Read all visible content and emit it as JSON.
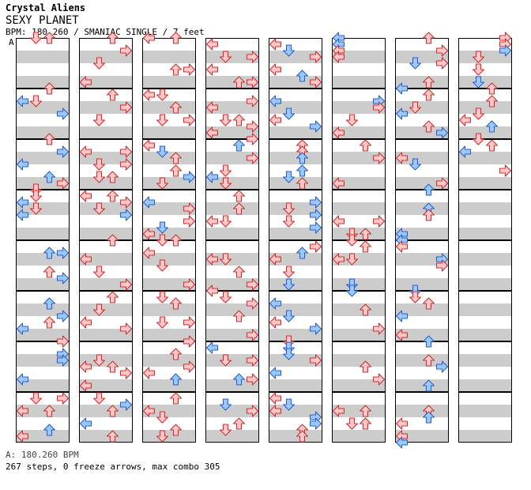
{
  "song": {
    "artist": "Crystal Aliens",
    "title": "SEXY PLANET",
    "meta_line": "BPM: 180.260 / SMANIAC SINGLE / 7 feet",
    "section_label": "A"
  },
  "footer": {
    "bpm_line": "A: 180.260 BPM",
    "stats_line": "267 steps, 0 freeze arrows, max combo 305"
  },
  "colors": {
    "red_arrow_fill": "#ffc8c8",
    "red_arrow_stroke": "#d03030",
    "blue_arrow_fill": "#9cc8ff",
    "blue_arrow_stroke": "#2a62c8",
    "stripe": "#cccccc",
    "border": "#000000"
  },
  "chart": {
    "columns": 8,
    "measures_per_column": 8,
    "lanes": [
      "left",
      "down",
      "up",
      "right"
    ],
    "measure_count_total": 64
  },
  "steps": [
    [
      0,
      0,
      1,
      0.0,
      "r"
    ],
    [
      0,
      0,
      2,
      0.0,
      "r"
    ],
    [
      0,
      1,
      0,
      0.25,
      "b"
    ],
    [
      0,
      1,
      2,
      0.0,
      "r"
    ],
    [
      0,
      1,
      1,
      0.25,
      "r"
    ],
    [
      0,
      1,
      3,
      0.5,
      "b"
    ],
    [
      0,
      2,
      2,
      0.0,
      "r"
    ],
    [
      0,
      2,
      3,
      0.25,
      "b"
    ],
    [
      0,
      2,
      0,
      0.5,
      "b"
    ],
    [
      0,
      2,
      2,
      0.75,
      "b"
    ],
    [
      0,
      2,
      3,
      0.875,
      "r"
    ],
    [
      0,
      3,
      1,
      0.0,
      "r"
    ],
    [
      0,
      3,
      1,
      0.125,
      "r"
    ],
    [
      0,
      3,
      0,
      0.25,
      "b"
    ],
    [
      0,
      3,
      1,
      0.375,
      "r"
    ],
    [
      0,
      3,
      0,
      0.5,
      "b"
    ],
    [
      0,
      4,
      2,
      0.25,
      "b"
    ],
    [
      0,
      4,
      3,
      0.25,
      "b"
    ],
    [
      0,
      4,
      2,
      0.625,
      "r"
    ],
    [
      0,
      4,
      3,
      0.75,
      "b"
    ],
    [
      0,
      5,
      2,
      0.25,
      "b"
    ],
    [
      0,
      5,
      3,
      0.5,
      "b"
    ],
    [
      0,
      5,
      2,
      0.625,
      "r"
    ],
    [
      0,
      5,
      0,
      0.75,
      "b"
    ],
    [
      0,
      6,
      3,
      0.0,
      "r"
    ],
    [
      0,
      6,
      3,
      0.25,
      "b"
    ],
    [
      0,
      6,
      3,
      0.375,
      "b"
    ],
    [
      0,
      6,
      0,
      0.75,
      "b"
    ],
    [
      0,
      7,
      1,
      0.125,
      "r"
    ],
    [
      0,
      7,
      3,
      0.125,
      "r"
    ],
    [
      0,
      7,
      0,
      0.375,
      "r"
    ],
    [
      0,
      7,
      2,
      0.375,
      "r"
    ],
    [
      0,
      7,
      2,
      0.75,
      "b"
    ],
    [
      0,
      7,
      0,
      0.875,
      "r"
    ],
    [
      1,
      0,
      2,
      0.0,
      "r"
    ],
    [
      1,
      0,
      3,
      0.25,
      "r"
    ],
    [
      1,
      0,
      1,
      0.5,
      "r"
    ],
    [
      1,
      0,
      0,
      0.875,
      "r"
    ],
    [
      1,
      1,
      2,
      0.125,
      "r"
    ],
    [
      1,
      1,
      3,
      0.375,
      "r"
    ],
    [
      1,
      1,
      1,
      0.625,
      "r"
    ],
    [
      1,
      2,
      0,
      0.25,
      "r"
    ],
    [
      1,
      2,
      3,
      0.25,
      "r"
    ],
    [
      1,
      2,
      1,
      0.5,
      "r"
    ],
    [
      1,
      2,
      3,
      0.5,
      "r"
    ],
    [
      1,
      2,
      1,
      0.75,
      "r"
    ],
    [
      1,
      2,
      2,
      0.75,
      "r"
    ],
    [
      1,
      3,
      0,
      0.125,
      "r"
    ],
    [
      1,
      3,
      2,
      0.125,
      "r"
    ],
    [
      1,
      3,
      3,
      0.25,
      "r"
    ],
    [
      1,
      3,
      1,
      0.375,
      "r"
    ],
    [
      1,
      3,
      3,
      0.5,
      "b"
    ],
    [
      1,
      4,
      2,
      0.0,
      "r"
    ],
    [
      1,
      4,
      0,
      0.375,
      "r"
    ],
    [
      1,
      4,
      1,
      0.625,
      "r"
    ],
    [
      1,
      4,
      3,
      0.875,
      "r"
    ],
    [
      1,
      5,
      2,
      0.125,
      "r"
    ],
    [
      1,
      5,
      1,
      0.375,
      "r"
    ],
    [
      1,
      5,
      0,
      0.625,
      "r"
    ],
    [
      1,
      5,
      3,
      0.75,
      "r"
    ],
    [
      1,
      6,
      1,
      0.375,
      "r"
    ],
    [
      1,
      6,
      0,
      0.5,
      "r"
    ],
    [
      1,
      6,
      2,
      0.5,
      "r"
    ],
    [
      1,
      6,
      3,
      0.625,
      "r"
    ],
    [
      1,
      6,
      0,
      0.875,
      "r"
    ],
    [
      1,
      7,
      1,
      0.125,
      "r"
    ],
    [
      1,
      7,
      3,
      0.25,
      "b"
    ],
    [
      1,
      7,
      2,
      0.375,
      "r"
    ],
    [
      1,
      7,
      0,
      0.625,
      "b"
    ],
    [
      1,
      7,
      2,
      0.875,
      "r"
    ],
    [
      2,
      0,
      0,
      0.0,
      "r"
    ],
    [
      2,
      0,
      2,
      0.0,
      "r"
    ],
    [
      2,
      0,
      2,
      0.625,
      "r"
    ],
    [
      2,
      0,
      3,
      0.625,
      "r"
    ],
    [
      2,
      1,
      0,
      0.125,
      "r"
    ],
    [
      2,
      1,
      1,
      0.125,
      "r"
    ],
    [
      2,
      1,
      2,
      0.375,
      "r"
    ],
    [
      2,
      1,
      1,
      0.625,
      "r"
    ],
    [
      2,
      1,
      3,
      0.625,
      "r"
    ],
    [
      2,
      2,
      0,
      0.125,
      "r"
    ],
    [
      2,
      2,
      1,
      0.25,
      "b"
    ],
    [
      2,
      2,
      2,
      0.375,
      "r"
    ],
    [
      2,
      2,
      2,
      0.625,
      "r"
    ],
    [
      2,
      2,
      3,
      0.75,
      "b"
    ],
    [
      2,
      2,
      1,
      0.875,
      "r"
    ],
    [
      2,
      3,
      0,
      0.25,
      "b"
    ],
    [
      2,
      3,
      3,
      0.375,
      "r"
    ],
    [
      2,
      3,
      3,
      0.625,
      "r"
    ],
    [
      2,
      3,
      1,
      0.75,
      "b"
    ],
    [
      2,
      3,
      0,
      0.875,
      "r"
    ],
    [
      2,
      4,
      1,
      0.0,
      "r"
    ],
    [
      2,
      4,
      2,
      0.0,
      "r"
    ],
    [
      2,
      4,
      0,
      0.25,
      "r"
    ],
    [
      2,
      4,
      1,
      0.5,
      "r"
    ],
    [
      2,
      4,
      3,
      0.875,
      "r"
    ],
    [
      2,
      5,
      1,
      0.125,
      "r"
    ],
    [
      2,
      5,
      2,
      0.25,
      "r"
    ],
    [
      2,
      5,
      1,
      0.625,
      "r"
    ],
    [
      2,
      5,
      3,
      0.625,
      "r"
    ],
    [
      2,
      6,
      3,
      0.0,
      "r"
    ],
    [
      2,
      6,
      2,
      0.25,
      "r"
    ],
    [
      2,
      6,
      3,
      0.5,
      "r"
    ],
    [
      2,
      6,
      0,
      0.625,
      "r"
    ],
    [
      2,
      6,
      2,
      0.75,
      "b"
    ],
    [
      2,
      7,
      2,
      0.125,
      "r"
    ],
    [
      2,
      7,
      0,
      0.375,
      "r"
    ],
    [
      2,
      7,
      1,
      0.5,
      "r"
    ],
    [
      2,
      7,
      2,
      0.75,
      "r"
    ],
    [
      2,
      7,
      1,
      0.875,
      "r"
    ],
    [
      3,
      0,
      0,
      0.125,
      "r"
    ],
    [
      3,
      0,
      1,
      0.375,
      "r"
    ],
    [
      3,
      0,
      3,
      0.375,
      "r"
    ],
    [
      3,
      0,
      0,
      0.625,
      "r"
    ],
    [
      3,
      0,
      2,
      0.875,
      "r"
    ],
    [
      3,
      0,
      3,
      0.875,
      "r"
    ],
    [
      3,
      1,
      3,
      0.25,
      "r"
    ],
    [
      3,
      1,
      0,
      0.375,
      "r"
    ],
    [
      3,
      1,
      1,
      0.625,
      "r"
    ],
    [
      3,
      1,
      2,
      0.625,
      "r"
    ],
    [
      3,
      1,
      3,
      0.75,
      "r"
    ],
    [
      3,
      1,
      0,
      0.875,
      "r"
    ],
    [
      3,
      2,
      3,
      0.0,
      "r"
    ],
    [
      3,
      2,
      2,
      0.125,
      "b"
    ],
    [
      3,
      2,
      3,
      0.375,
      "r"
    ],
    [
      3,
      2,
      1,
      0.625,
      "r"
    ],
    [
      3,
      2,
      0,
      0.75,
      "b"
    ],
    [
      3,
      2,
      1,
      0.875,
      "r"
    ],
    [
      3,
      3,
      2,
      0.125,
      "r"
    ],
    [
      3,
      3,
      2,
      0.375,
      "r"
    ],
    [
      3,
      3,
      0,
      0.625,
      "r"
    ],
    [
      3,
      3,
      1,
      0.625,
      "r"
    ],
    [
      3,
      4,
      0,
      0.375,
      "r"
    ],
    [
      3,
      4,
      1,
      0.375,
      "r"
    ],
    [
      3,
      4,
      2,
      0.625,
      "r"
    ],
    [
      3,
      4,
      3,
      0.875,
      "r"
    ],
    [
      3,
      5,
      0,
      0.0,
      "r"
    ],
    [
      3,
      5,
      1,
      0.125,
      "r"
    ],
    [
      3,
      5,
      3,
      0.25,
      "r"
    ],
    [
      3,
      5,
      2,
      0.5,
      "r"
    ],
    [
      3,
      5,
      3,
      0.875,
      "r"
    ],
    [
      3,
      6,
      0,
      0.125,
      "b"
    ],
    [
      3,
      6,
      1,
      0.375,
      "r"
    ],
    [
      3,
      6,
      3,
      0.375,
      "r"
    ],
    [
      3,
      6,
      2,
      0.75,
      "b"
    ],
    [
      3,
      6,
      3,
      0.75,
      "r"
    ],
    [
      3,
      7,
      1,
      0.25,
      "b"
    ],
    [
      3,
      7,
      3,
      0.375,
      "r"
    ],
    [
      3,
      7,
      2,
      0.625,
      "r"
    ],
    [
      3,
      7,
      1,
      0.75,
      "r"
    ],
    [
      4,
      0,
      0,
      0.125,
      "r"
    ],
    [
      4,
      0,
      1,
      0.25,
      "b"
    ],
    [
      4,
      0,
      3,
      0.375,
      "r"
    ],
    [
      4,
      0,
      0,
      0.625,
      "r"
    ],
    [
      4,
      0,
      2,
      0.75,
      "b"
    ],
    [
      4,
      0,
      3,
      0.875,
      "r"
    ],
    [
      4,
      1,
      0,
      0.25,
      "b"
    ],
    [
      4,
      1,
      1,
      0.5,
      "b"
    ],
    [
      4,
      1,
      0,
      0.625,
      "r"
    ],
    [
      4,
      1,
      3,
      0.75,
      "b"
    ],
    [
      4,
      2,
      2,
      0.125,
      "r"
    ],
    [
      4,
      2,
      2,
      0.25,
      "r"
    ],
    [
      4,
      2,
      2,
      0.375,
      "b"
    ],
    [
      4,
      2,
      2,
      0.625,
      "b"
    ],
    [
      4,
      2,
      1,
      0.75,
      "b"
    ],
    [
      4,
      2,
      2,
      0.875,
      "r"
    ],
    [
      4,
      3,
      3,
      0.25,
      "b"
    ],
    [
      4,
      3,
      1,
      0.375,
      "r"
    ],
    [
      4,
      3,
      3,
      0.5,
      "b"
    ],
    [
      4,
      3,
      1,
      0.625,
      "r"
    ],
    [
      4,
      3,
      3,
      0.75,
      "b"
    ],
    [
      4,
      4,
      3,
      0.125,
      "r"
    ],
    [
      4,
      4,
      2,
      0.25,
      "b"
    ],
    [
      4,
      4,
      0,
      0.375,
      "r"
    ],
    [
      4,
      4,
      1,
      0.625,
      "r"
    ],
    [
      4,
      4,
      1,
      0.875,
      "b"
    ],
    [
      4,
      5,
      0,
      0.25,
      "b"
    ],
    [
      4,
      5,
      1,
      0.5,
      "b"
    ],
    [
      4,
      5,
      0,
      0.625,
      "r"
    ],
    [
      4,
      5,
      3,
      0.75,
      "b"
    ],
    [
      4,
      6,
      1,
      0.0,
      "r"
    ],
    [
      4,
      6,
      1,
      0.125,
      "b"
    ],
    [
      4,
      6,
      1,
      0.25,
      "b"
    ],
    [
      4,
      6,
      3,
      0.375,
      "r"
    ],
    [
      4,
      6,
      0,
      0.625,
      "b"
    ],
    [
      4,
      7,
      0,
      0.125,
      "r"
    ],
    [
      4,
      7,
      0,
      0.375,
      "r"
    ],
    [
      4,
      7,
      1,
      0.25,
      "b"
    ],
    [
      4,
      7,
      3,
      0.5,
      "b"
    ],
    [
      4,
      7,
      3,
      0.625,
      "b"
    ],
    [
      4,
      7,
      2,
      0.75,
      "r"
    ],
    [
      4,
      7,
      2,
      0.875,
      "r"
    ],
    [
      5,
      0,
      0,
      0.0,
      "b"
    ],
    [
      5,
      0,
      0,
      0.125,
      "b"
    ],
    [
      5,
      0,
      0,
      0.25,
      "r"
    ],
    [
      5,
      0,
      0,
      0.375,
      "r"
    ],
    [
      5,
      1,
      3,
      0.25,
      "b"
    ],
    [
      5,
      1,
      3,
      0.375,
      "r"
    ],
    [
      5,
      1,
      1,
      0.625,
      "r"
    ],
    [
      5,
      1,
      0,
      0.875,
      "r"
    ],
    [
      5,
      2,
      2,
      0.125,
      "r"
    ],
    [
      5,
      2,
      3,
      0.375,
      "r"
    ],
    [
      5,
      2,
      0,
      0.875,
      "r"
    ],
    [
      5,
      3,
      0,
      0.625,
      "r"
    ],
    [
      5,
      3,
      3,
      0.625,
      "r"
    ],
    [
      5,
      3,
      1,
      0.875,
      "r"
    ],
    [
      5,
      3,
      2,
      0.875,
      "r"
    ],
    [
      5,
      4,
      1,
      0.0,
      "r"
    ],
    [
      5,
      4,
      2,
      0.125,
      "r"
    ],
    [
      5,
      4,
      0,
      0.375,
      "r"
    ],
    [
      5,
      4,
      1,
      0.375,
      "r"
    ],
    [
      5,
      4,
      1,
      0.875,
      "b"
    ],
    [
      5,
      5,
      1,
      0.0,
      "b"
    ],
    [
      5,
      5,
      2,
      0.375,
      "r"
    ],
    [
      5,
      5,
      3,
      0.75,
      "r"
    ],
    [
      5,
      6,
      2,
      0.5,
      "r"
    ],
    [
      5,
      6,
      3,
      0.75,
      "r"
    ],
    [
      5,
      7,
      0,
      0.375,
      "r"
    ],
    [
      5,
      7,
      2,
      0.375,
      "r"
    ],
    [
      5,
      7,
      1,
      0.625,
      "r"
    ],
    [
      5,
      7,
      2,
      0.625,
      "r"
    ],
    [
      6,
      0,
      2,
      0.0,
      "r"
    ],
    [
      6,
      0,
      3,
      0.25,
      "r"
    ],
    [
      6,
      0,
      1,
      0.5,
      "b"
    ],
    [
      6,
      0,
      3,
      0.5,
      "r"
    ],
    [
      6,
      0,
      2,
      0.875,
      "r"
    ],
    [
      6,
      1,
      0,
      0.0,
      "b"
    ],
    [
      6,
      1,
      2,
      0.125,
      "r"
    ],
    [
      6,
      1,
      1,
      0.375,
      "r"
    ],
    [
      6,
      1,
      0,
      0.5,
      "b"
    ],
    [
      6,
      1,
      2,
      0.75,
      "r"
    ],
    [
      6,
      1,
      3,
      0.875,
      "b"
    ],
    [
      6,
      2,
      0,
      0.375,
      "r"
    ],
    [
      6,
      2,
      1,
      0.5,
      "b"
    ],
    [
      6,
      2,
      3,
      0.875,
      "r"
    ],
    [
      6,
      3,
      2,
      0.0,
      "b"
    ],
    [
      6,
      3,
      2,
      0.375,
      "b"
    ],
    [
      6,
      3,
      2,
      0.5,
      "r"
    ],
    [
      6,
      3,
      0,
      0.875,
      "b"
    ],
    [
      6,
      4,
      0,
      0.0,
      "b"
    ],
    [
      6,
      4,
      0,
      0.125,
      "r"
    ],
    [
      6,
      4,
      3,
      0.375,
      "b"
    ],
    [
      6,
      4,
      3,
      0.5,
      "r"
    ],
    [
      6,
      5,
      1,
      0.0,
      "b"
    ],
    [
      6,
      5,
      1,
      0.125,
      "r"
    ],
    [
      6,
      5,
      2,
      0.25,
      "r"
    ],
    [
      6,
      5,
      0,
      0.5,
      "b"
    ],
    [
      6,
      5,
      0,
      0.875,
      "r"
    ],
    [
      6,
      6,
      2,
      0.0,
      "b"
    ],
    [
      6,
      6,
      2,
      0.375,
      "r"
    ],
    [
      6,
      6,
      3,
      0.5,
      "b"
    ],
    [
      6,
      6,
      2,
      0.875,
      "b"
    ],
    [
      6,
      7,
      2,
      0.375,
      "r"
    ],
    [
      6,
      7,
      2,
      0.5,
      "b"
    ],
    [
      6,
      7,
      0,
      0.625,
      "r"
    ],
    [
      6,
      7,
      0,
      0.875,
      "r"
    ],
    [
      6,
      7,
      0,
      1.0,
      "b"
    ],
    [
      7,
      0,
      3,
      0.0,
      "r"
    ],
    [
      7,
      0,
      3,
      0.125,
      "r"
    ],
    [
      7,
      0,
      3,
      0.25,
      "b"
    ],
    [
      7,
      0,
      1,
      0.375,
      "r"
    ],
    [
      7,
      0,
      1,
      0.625,
      "r"
    ],
    [
      7,
      0,
      1,
      0.875,
      "b"
    ],
    [
      7,
      1,
      2,
      0.0,
      "r"
    ],
    [
      7,
      1,
      2,
      0.25,
      "r"
    ],
    [
      7,
      1,
      1,
      0.5,
      "r"
    ],
    [
      7,
      1,
      0,
      0.625,
      "r"
    ],
    [
      7,
      1,
      2,
      0.75,
      "b"
    ],
    [
      7,
      2,
      1,
      0.0,
      "r"
    ],
    [
      7,
      2,
      2,
      0.125,
      "r"
    ],
    [
      7,
      2,
      0,
      0.25,
      "b"
    ],
    [
      7,
      2,
      3,
      0.625,
      "r"
    ]
  ]
}
